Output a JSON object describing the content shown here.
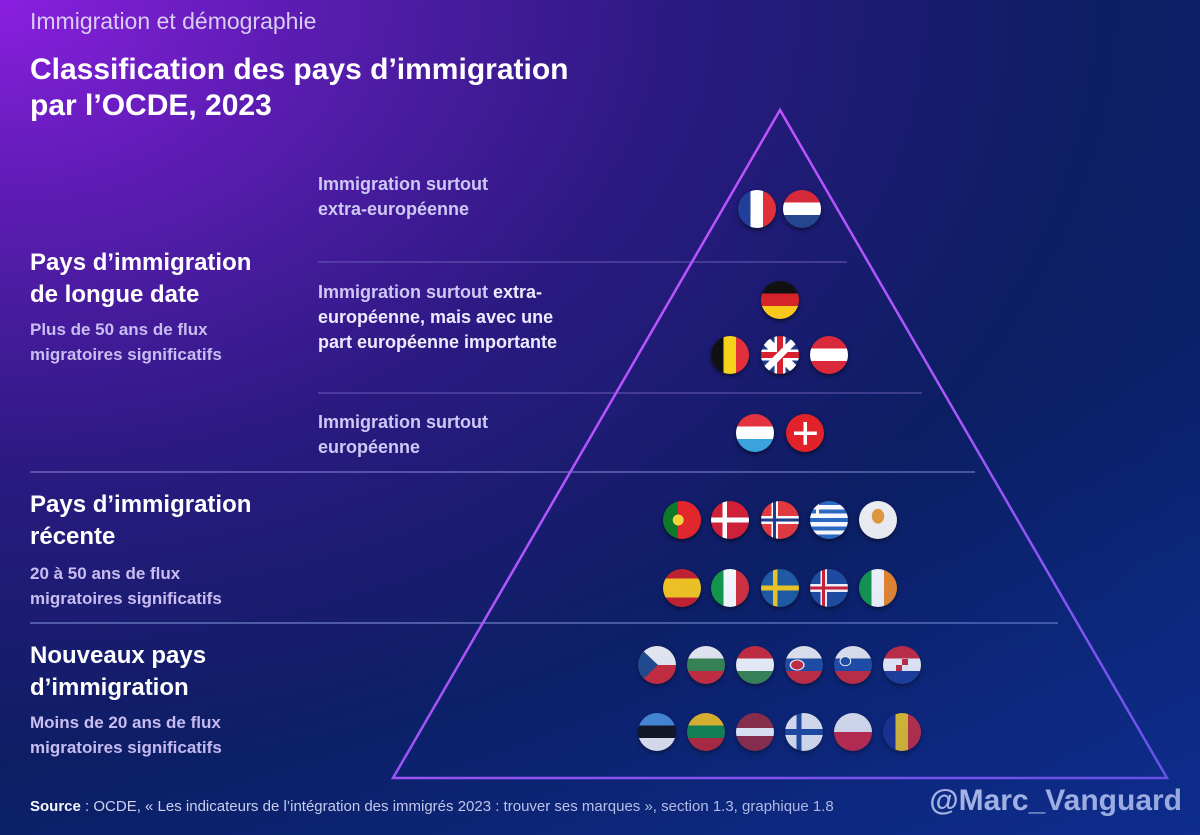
{
  "header": {
    "kicker": "Immigration et démographie",
    "title_line1": "Classification des pays d’immigration",
    "title_line2": "par l’OCDE, 2023"
  },
  "categories": [
    {
      "title_line1": "Pays d’immigration",
      "title_line2": "de longue date",
      "sub_line1": "Plus de 50 ans de flux",
      "sub_line2": "migratoires significatifs"
    },
    {
      "title_line1": "Pays d’immigration",
      "title_line2": "récente",
      "sub_line1": "20 à 50 ans de flux",
      "sub_line2": "migratoires significatifs"
    },
    {
      "title_line1": "Nouveaux pays",
      "title_line2": "d’immigration",
      "sub_line1": "Moins de 20 ans de flux",
      "sub_line2": "migratoires  significatifs"
    }
  ],
  "subgroups": [
    {
      "line1": "Immigration surtout",
      "line2": "extra-européenne"
    },
    {
      "line1a": "Immigration surtout ",
      "line1b": "extra-",
      "line2": "européenne, mais avec une",
      "line3": "part européenne importante"
    },
    {
      "line1": "Immigration surtout",
      "line2": "européenne"
    }
  ],
  "flag_rows": [
    [
      "fr",
      "nl"
    ],
    [
      "de"
    ],
    [
      "be",
      "uk",
      "at"
    ],
    [
      "lu",
      "ch"
    ],
    [
      "pt",
      "dk",
      "no",
      "gr",
      "cy"
    ],
    [
      "es",
      "it",
      "se",
      "is",
      "ie"
    ],
    [
      "cz",
      "bg",
      "hu",
      "sk",
      "si",
      "hr"
    ],
    [
      "ee",
      "lt",
      "lv",
      "fi",
      "pl",
      "ro"
    ]
  ],
  "footer": {
    "source_label": "Source",
    "source_text": " : OCDE, « Les indicateurs de l’intégration des immigrés 2023 : trouver ses marques », section 1.3, graphique 1.8",
    "handle": "@Marc_Vanguard"
  },
  "colors": {
    "triangle_start": "#c040ff",
    "triangle_end": "#7a4cff",
    "line": "#8a8ad8"
  }
}
